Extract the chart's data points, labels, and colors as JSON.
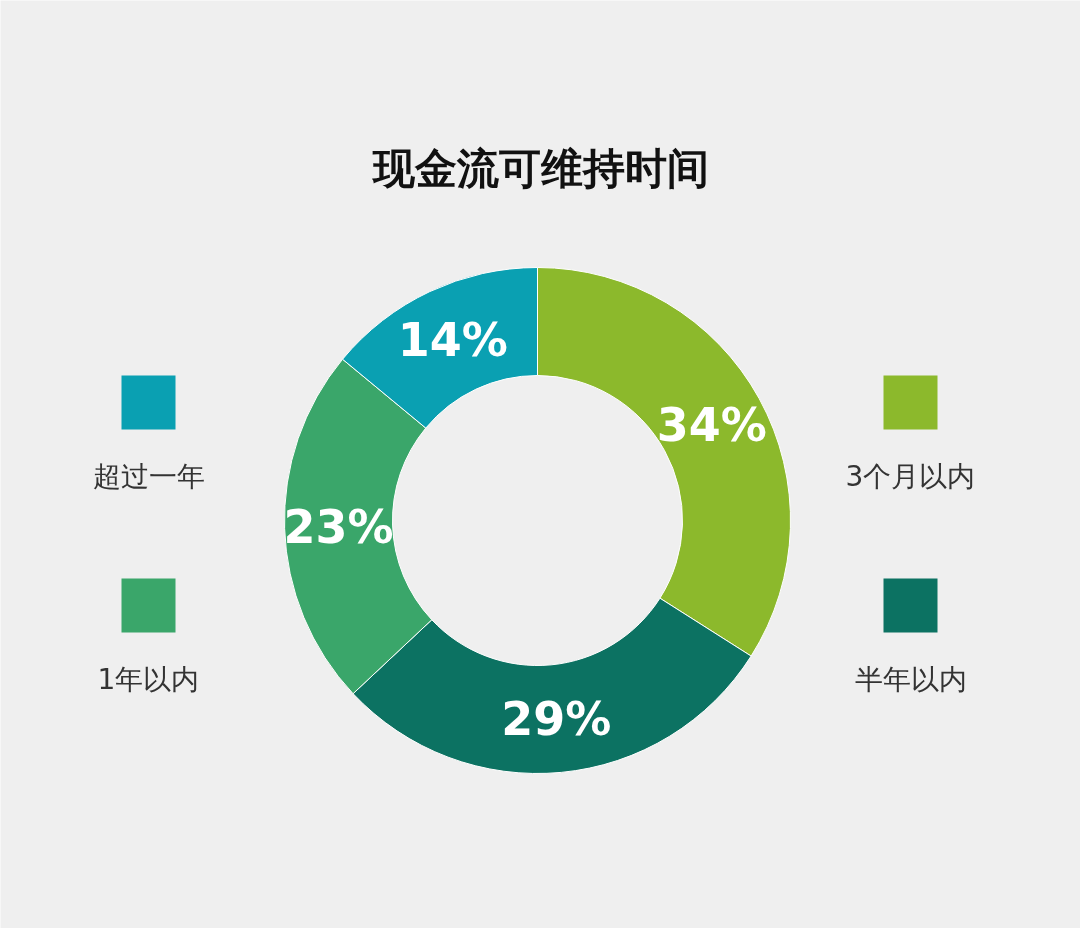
{
  "chart_data": {
    "type": "donut",
    "title": "现金流可维持时间",
    "categories": [
      "3个月以内",
      "半年以内",
      "1年以内",
      "超过一年"
    ],
    "values": [
      34,
      29,
      23,
      14
    ],
    "colors": [
      "#8cb92c",
      "#0c7262",
      "#3aa66a",
      "#0aa0b2"
    ],
    "value_labels": [
      "34%",
      "29%",
      "23%",
      "14%"
    ],
    "legend": "left and right"
  }
}
